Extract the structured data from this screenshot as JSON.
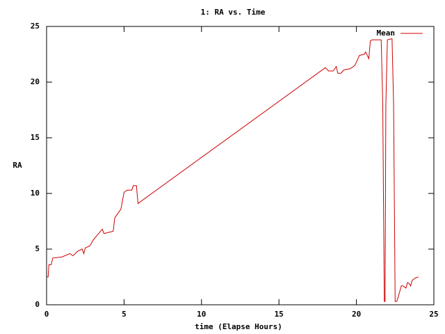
{
  "chart_data": {
    "type": "line",
    "title": "1: RA vs. Time",
    "x_label": "time (Elapse Hours)",
    "y_label": "RA",
    "x": [
      0,
      0.1,
      0.15,
      0.3,
      0.4,
      1.0,
      1.5,
      1.7,
      2.0,
      2.3,
      2.4,
      2.5,
      2.8,
      3.0,
      3.3,
      3.6,
      3.7,
      4.0,
      4.3,
      4.4,
      4.6,
      4.8,
      5.0,
      5.2,
      5.5,
      5.6,
      5.8,
      5.9,
      18.0,
      18.2,
      18.5,
      18.7,
      18.8,
      19.0,
      19.2,
      19.6,
      19.9,
      20.0,
      20.2,
      20.5,
      20.6,
      20.8,
      20.9,
      21.0,
      21.6,
      21.7,
      21.8,
      21.85,
      21.9,
      22.0,
      22.3,
      22.4,
      22.5,
      22.6,
      22.7,
      22.8,
      22.9,
      23.0,
      23.2,
      23.3,
      23.4,
      23.5,
      23.6,
      23.8,
      24.0
    ],
    "series": [
      {
        "name": "Mean",
        "color": "#cc0000",
        "values": [
          2.5,
          2.5,
          3.6,
          3.6,
          4.2,
          4.3,
          4.6,
          4.4,
          4.8,
          5.0,
          4.6,
          5.1,
          5.3,
          5.8,
          6.3,
          6.8,
          6.4,
          6.5,
          6.6,
          7.8,
          8.2,
          8.6,
          10.1,
          10.3,
          10.3,
          10.7,
          10.7,
          9.1,
          21.3,
          21.0,
          21.0,
          21.4,
          20.8,
          20.8,
          21.1,
          21.2,
          21.5,
          21.8,
          22.4,
          22.5,
          22.7,
          22.1,
          23.7,
          23.8,
          23.8,
          18,
          0.3,
          0.3,
          18,
          23.8,
          23.9,
          18,
          0.3,
          0.3,
          0.7,
          1.2,
          1.7,
          1.7,
          1.5,
          2.0,
          1.9,
          1.7,
          2.2,
          2.4,
          2.5
        ]
      }
    ],
    "xlim": [
      0,
      25
    ],
    "ylim": [
      0,
      25
    ],
    "xticks": [
      0,
      5,
      10,
      15,
      20,
      25
    ],
    "yticks": [
      0,
      5,
      10,
      15,
      20,
      25
    ],
    "legend": "top-right",
    "grid": false
  }
}
